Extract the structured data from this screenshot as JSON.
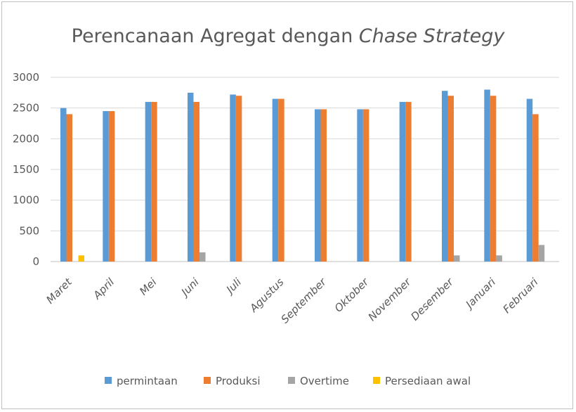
{
  "chart_data": {
    "type": "bar",
    "title": "Perencanaan Agregat dengan ",
    "title_italic": "Chase Strategy",
    "categories": [
      "Maret",
      "April",
      "Mei",
      "Juni",
      "Juli",
      "Agustus",
      "September",
      "Oktober",
      "November",
      "Desember",
      "Januari",
      "Februari"
    ],
    "series": [
      {
        "name": "permintaan",
        "color": "#5B9BD5",
        "values": [
          2500,
          2450,
          2600,
          2750,
          2720,
          2650,
          2480,
          2480,
          2600,
          2780,
          2800,
          2650
        ]
      },
      {
        "name": "Produksi",
        "color": "#ED7D31",
        "values": [
          2400,
          2450,
          2600,
          2600,
          2700,
          2650,
          2480,
          2480,
          2600,
          2700,
          2700,
          2400
        ]
      },
      {
        "name": "Overtime",
        "color": "#A5A5A5",
        "values": [
          0,
          0,
          0,
          150,
          0,
          0,
          0,
          0,
          0,
          100,
          100,
          270
        ]
      },
      {
        "name": "Persediaan awal",
        "color": "#FFC000",
        "values": [
          100,
          0,
          0,
          0,
          0,
          0,
          0,
          0,
          0,
          0,
          0,
          0
        ]
      }
    ],
    "ylim": [
      0,
      3000
    ],
    "yticks": [
      0,
      500,
      1000,
      1500,
      2000,
      2500,
      3000
    ],
    "grid": true,
    "legend_position": "bottom"
  }
}
